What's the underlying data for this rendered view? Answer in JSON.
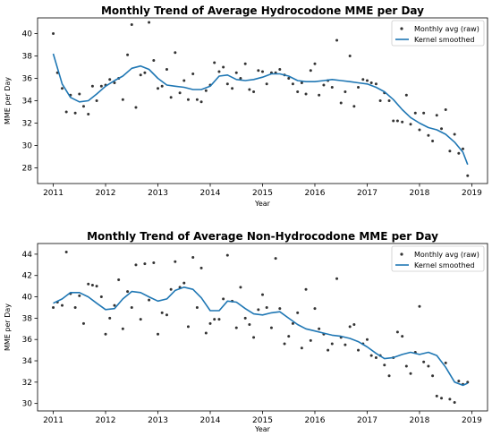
{
  "chart_data": [
    {
      "type": "scatter",
      "title": "Monthly Trend of Average Hydrocodone MME per Day",
      "xlabel": "Year",
      "ylabel": "MME per Day",
      "xlim": [
        2010.7,
        2019.3
      ],
      "ylim": [
        26.6,
        41.4
      ],
      "xticks": [
        2011,
        2012,
        2013,
        2014,
        2015,
        2016,
        2017,
        2018,
        2019
      ],
      "yticks": [
        28,
        30,
        32,
        34,
        36,
        38,
        40
      ],
      "legend_position": "top-right",
      "series": [
        {
          "name": "Monthly avg (raw)",
          "kind": "points",
          "color": "#333333",
          "x": [
            2011.0,
            2011.08,
            2011.17,
            2011.25,
            2011.33,
            2011.42,
            2011.5,
            2011.58,
            2011.67,
            2011.75,
            2011.83,
            2011.92,
            2012.0,
            2012.08,
            2012.17,
            2012.25,
            2012.33,
            2012.42,
            2012.5,
            2012.58,
            2012.67,
            2012.75,
            2012.83,
            2012.92,
            2013.0,
            2013.08,
            2013.17,
            2013.25,
            2013.33,
            2013.42,
            2013.5,
            2013.58,
            2013.67,
            2013.75,
            2013.83,
            2013.92,
            2014.0,
            2014.08,
            2014.17,
            2014.25,
            2014.33,
            2014.42,
            2014.5,
            2014.58,
            2014.67,
            2014.75,
            2014.83,
            2014.92,
            2015.0,
            2015.08,
            2015.17,
            2015.25,
            2015.33,
            2015.42,
            2015.5,
            2015.58,
            2015.67,
            2015.75,
            2015.83,
            2015.92,
            2016.0,
            2016.08,
            2016.17,
            2016.25,
            2016.33,
            2016.42,
            2016.5,
            2016.58,
            2016.67,
            2016.75,
            2016.83,
            2016.92,
            2017.0,
            2017.08,
            2017.17,
            2017.25,
            2017.33,
            2017.42,
            2017.5,
            2017.58,
            2017.67,
            2017.75,
            2017.83,
            2017.92,
            2018.0,
            2018.08,
            2018.17,
            2018.25,
            2018.33,
            2018.42,
            2018.5,
            2018.58,
            2018.67,
            2018.75,
            2018.83,
            2018.92
          ],
          "y": [
            40.0,
            36.5,
            35.1,
            33.0,
            34.5,
            32.9,
            34.6,
            33.5,
            32.8,
            35.3,
            34.0,
            35.3,
            35.4,
            35.9,
            35.6,
            36.0,
            34.1,
            38.1,
            40.8,
            33.4,
            36.3,
            36.5,
            41.0,
            37.6,
            35.1,
            35.3,
            36.8,
            34.3,
            38.3,
            34.7,
            35.8,
            34.1,
            36.4,
            34.1,
            33.9,
            34.9,
            35.4,
            37.4,
            36.6,
            37.0,
            35.5,
            35.1,
            36.5,
            36.0,
            37.3,
            35.0,
            34.8,
            36.7,
            36.6,
            35.5,
            36.5,
            36.5,
            36.8,
            36.3,
            36.0,
            35.5,
            34.8,
            35.6,
            34.6,
            36.7,
            37.3,
            34.5,
            35.4,
            35.8,
            35.2,
            39.4,
            33.8,
            34.8,
            38.0,
            33.5,
            35.2,
            35.9,
            35.8,
            35.6,
            35.5,
            34.0,
            34.7,
            34.0,
            32.2,
            32.2,
            32.1,
            34.5,
            31.9,
            32.9,
            31.4,
            32.9,
            30.9,
            30.4,
            32.7,
            31.5,
            33.2,
            29.5,
            31.0,
            29.3,
            29.7,
            27.3
          ]
        },
        {
          "name": "Kernel smoothed",
          "kind": "line",
          "color": "#1f77b4",
          "x": [
            2011.0,
            2011.17,
            2011.33,
            2011.5,
            2011.67,
            2011.83,
            2012.0,
            2012.17,
            2012.33,
            2012.5,
            2012.67,
            2012.83,
            2013.0,
            2013.17,
            2013.33,
            2013.5,
            2013.67,
            2013.83,
            2014.0,
            2014.17,
            2014.33,
            2014.5,
            2014.67,
            2014.83,
            2015.0,
            2015.17,
            2015.33,
            2015.5,
            2015.67,
            2015.83,
            2016.0,
            2016.17,
            2016.33,
            2016.5,
            2016.67,
            2016.83,
            2017.0,
            2017.17,
            2017.33,
            2017.5,
            2017.67,
            2017.83,
            2018.0,
            2018.17,
            2018.33,
            2018.5,
            2018.67,
            2018.83,
            2018.92
          ],
          "y": [
            38.2,
            35.5,
            34.3,
            33.9,
            34.0,
            34.6,
            35.3,
            35.8,
            36.2,
            36.9,
            37.1,
            36.8,
            36.0,
            35.4,
            35.3,
            35.2,
            35.0,
            35.0,
            35.3,
            36.2,
            36.3,
            35.9,
            35.8,
            35.9,
            36.1,
            36.4,
            36.4,
            36.2,
            35.8,
            35.7,
            35.7,
            35.8,
            35.9,
            35.8,
            35.7,
            35.6,
            35.5,
            35.2,
            34.8,
            34.1,
            33.2,
            32.5,
            32.0,
            31.6,
            31.4,
            31.0,
            30.3,
            29.4,
            28.3
          ]
        }
      ]
    },
    {
      "type": "scatter",
      "title": "Monthly Trend of Average Non-Hydrocodone MME per Day",
      "xlabel": "Year",
      "ylabel": "MME per Day",
      "xlim": [
        2010.7,
        2019.3
      ],
      "ylim": [
        29.3,
        45.0
      ],
      "xticks": [
        2011,
        2012,
        2013,
        2014,
        2015,
        2016,
        2017,
        2018,
        2019
      ],
      "yticks": [
        30,
        32,
        34,
        36,
        38,
        40,
        42,
        44
      ],
      "legend_position": "top-right",
      "series": [
        {
          "name": "Monthly avg (raw)",
          "kind": "points",
          "color": "#333333",
          "x": [
            2011.0,
            2011.08,
            2011.17,
            2011.25,
            2011.33,
            2011.42,
            2011.5,
            2011.58,
            2011.67,
            2011.75,
            2011.83,
            2011.92,
            2012.0,
            2012.08,
            2012.17,
            2012.25,
            2012.33,
            2012.42,
            2012.5,
            2012.58,
            2012.67,
            2012.75,
            2012.83,
            2012.92,
            2013.0,
            2013.08,
            2013.17,
            2013.25,
            2013.33,
            2013.42,
            2013.5,
            2013.58,
            2013.67,
            2013.75,
            2013.83,
            2013.92,
            2014.0,
            2014.08,
            2014.17,
            2014.25,
            2014.33,
            2014.42,
            2014.5,
            2014.58,
            2014.67,
            2014.75,
            2014.83,
            2014.92,
            2015.0,
            2015.08,
            2015.17,
            2015.25,
            2015.33,
            2015.42,
            2015.5,
            2015.58,
            2015.67,
            2015.75,
            2015.83,
            2015.92,
            2016.0,
            2016.08,
            2016.17,
            2016.25,
            2016.33,
            2016.42,
            2016.5,
            2016.58,
            2016.67,
            2016.75,
            2016.83,
            2016.92,
            2017.0,
            2017.08,
            2017.17,
            2017.25,
            2017.33,
            2017.42,
            2017.5,
            2017.58,
            2017.67,
            2017.75,
            2017.83,
            2017.92,
            2018.0,
            2018.08,
            2018.17,
            2018.25,
            2018.33,
            2018.42,
            2018.5,
            2018.58,
            2018.67,
            2018.75,
            2018.83,
            2018.92
          ],
          "y": [
            39.0,
            39.5,
            39.2,
            44.2,
            40.3,
            39.0,
            40.1,
            37.5,
            41.2,
            41.1,
            41.0,
            40.0,
            36.5,
            38.0,
            39.2,
            41.6,
            37.0,
            40.5,
            39.0,
            43.0,
            37.9,
            43.1,
            39.7,
            43.2,
            36.5,
            38.5,
            38.3,
            40.7,
            43.3,
            40.9,
            41.3,
            37.2,
            43.7,
            39.0,
            42.7,
            36.6,
            37.5,
            37.9,
            37.9,
            39.8,
            43.9,
            39.6,
            37.1,
            40.9,
            38.0,
            37.4,
            36.2,
            38.8,
            40.2,
            39.0,
            37.1,
            43.6,
            38.9,
            35.6,
            36.3,
            37.5,
            38.5,
            35.2,
            40.7,
            35.9,
            38.9,
            37.0,
            36.5,
            35.0,
            35.6,
            41.7,
            36.2,
            35.5,
            37.2,
            37.4,
            35.0,
            35.6,
            36.0,
            34.5,
            34.3,
            34.5,
            33.6,
            32.6,
            34.3,
            36.7,
            36.3,
            33.5,
            32.8,
            34.8,
            39.1,
            33.9,
            33.5,
            32.6,
            30.7,
            30.5,
            33.8,
            30.4,
            30.1,
            32.1,
            31.8,
            32.0
          ]
        },
        {
          "name": "Kernel smoothed",
          "kind": "line",
          "color": "#1f77b4",
          "x": [
            2011.0,
            2011.17,
            2011.33,
            2011.5,
            2011.67,
            2011.83,
            2012.0,
            2012.17,
            2012.33,
            2012.5,
            2012.67,
            2012.83,
            2013.0,
            2013.17,
            2013.33,
            2013.5,
            2013.67,
            2013.83,
            2014.0,
            2014.17,
            2014.33,
            2014.5,
            2014.67,
            2014.83,
            2015.0,
            2015.17,
            2015.33,
            2015.5,
            2015.67,
            2015.83,
            2016.0,
            2016.17,
            2016.33,
            2016.5,
            2016.67,
            2016.83,
            2017.0,
            2017.17,
            2017.33,
            2017.5,
            2017.67,
            2017.83,
            2018.0,
            2018.17,
            2018.33,
            2018.5,
            2018.67,
            2018.83,
            2018.92
          ],
          "y": [
            39.4,
            39.8,
            40.4,
            40.4,
            40.0,
            39.4,
            38.8,
            38.9,
            39.8,
            40.5,
            40.4,
            40.0,
            39.6,
            39.8,
            40.6,
            40.9,
            40.7,
            39.9,
            38.7,
            38.7,
            39.6,
            39.5,
            38.9,
            38.4,
            38.3,
            38.5,
            38.6,
            38.0,
            37.4,
            37.0,
            36.8,
            36.6,
            36.4,
            36.3,
            36.1,
            35.8,
            35.3,
            34.7,
            34.2,
            34.3,
            34.6,
            34.8,
            34.6,
            34.8,
            34.5,
            33.4,
            32.0,
            31.7,
            31.9
          ]
        }
      ]
    }
  ]
}
